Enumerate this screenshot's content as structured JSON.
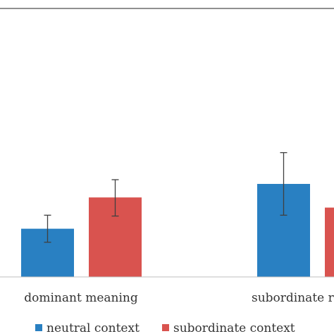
{
  "chart_data": {
    "type": "bar",
    "title": "",
    "xlabel": "",
    "ylabel": "",
    "categories": [
      "dominant meaning",
      "subordinate r"
    ],
    "series": [
      {
        "name": "neutral context",
        "color": "#2980c2",
        "values": [
          57,
          110
        ],
        "error_low": [
          41,
          73
        ],
        "error_high": [
          73,
          147
        ]
      },
      {
        "name": "subordinate context",
        "color": "#d9534f",
        "values": [
          94,
          82
        ],
        "error_low": [
          72,
          null
        ],
        "error_high": [
          115,
          null
        ]
      }
    ],
    "ylim": [
      0,
      157
    ],
    "grid": false,
    "legend_position": "bottom"
  }
}
